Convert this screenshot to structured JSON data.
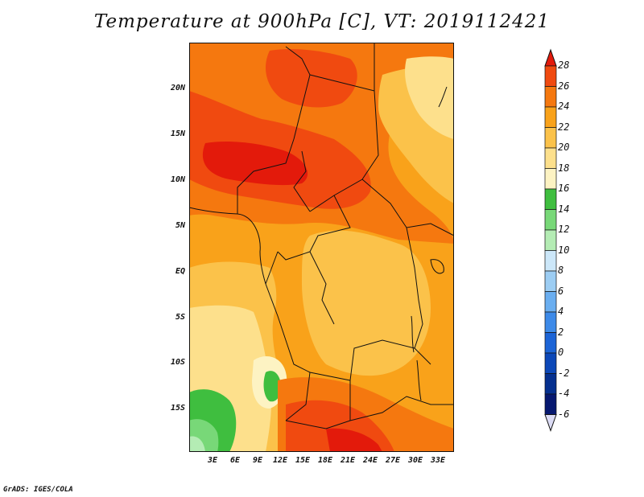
{
  "title": "Temperature at 900hPa [C], VT: 2019112421",
  "footer": "GrADS: IGES/COLA",
  "lat_labels": [
    "20N",
    "15N",
    "10N",
    "5N",
    "EQ",
    "5S",
    "10S",
    "15S"
  ],
  "lon_labels": [
    "3E",
    "6E",
    "9E",
    "12E",
    "15E",
    "18E",
    "21E",
    "24E",
    "27E",
    "30E",
    "33E"
  ],
  "colorbar": {
    "labels": [
      "28",
      "26",
      "24",
      "22",
      "20",
      "18",
      "16",
      "14",
      "12",
      "10",
      "8",
      "6",
      "4",
      "2",
      "0",
      "-2",
      "-4",
      "-6"
    ],
    "colors": [
      "#e31a0b",
      "#f04a10",
      "#f5780f",
      "#f9a21a",
      "#fbc24a",
      "#fde08c",
      "#fdf3c3",
      "#3fbe3f",
      "#78d878",
      "#b4ecb4",
      "#cce7f9",
      "#9ccdf3",
      "#6aaef0",
      "#3d8ae8",
      "#1c64d6",
      "#0c48b8",
      "#05308f",
      "#061870",
      "#dcdcf5"
    ]
  }
}
